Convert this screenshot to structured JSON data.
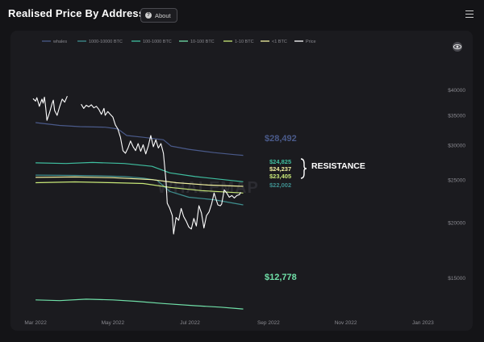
{
  "header": {
    "title": "Realised Price By Address",
    "about_label": "About"
  },
  "watermark": "WHALEMAP",
  "annotation": {
    "resistance": "RESISTANCE"
  },
  "colors": {
    "background": "#141417",
    "panel": "#1b1b1f",
    "price": "#ffffff",
    "whales": "#4a5a8a",
    "btc_1000_10000": "#3f8f8f",
    "btc_100_1000": "#3fbfa0",
    "btc_10_100": "#70e0a8",
    "btc_1_10": "#c8e878",
    "btc_lt1": "#f0f0a0"
  },
  "chart_data": {
    "type": "line",
    "x_ticks": [
      "Mar 2022",
      "May 2022",
      "Jul 2022",
      "Sep 2022",
      "Nov 2022",
      "Jan 2023"
    ],
    "y_ticks": [
      "$40000",
      "$35000",
      "$30000",
      "$25000",
      "$20000",
      "$15000"
    ],
    "y_scale": "log",
    "ylim": [
      12000,
      45000
    ],
    "xlim": [
      "2022-02-20",
      "2023-01-25"
    ],
    "legend_position": "top-left",
    "series": [
      {
        "name": "whales",
        "color": "#4a5a8a",
        "end_label": "$28,492",
        "points": [
          [
            "2022-03-01",
            33800
          ],
          [
            "2022-03-20",
            33300
          ],
          [
            "2022-04-05",
            33100
          ],
          [
            "2022-04-25",
            33000
          ],
          [
            "2022-05-05",
            32700
          ],
          [
            "2022-05-12",
            31600
          ],
          [
            "2022-05-25",
            31300
          ],
          [
            "2022-06-10",
            30900
          ],
          [
            "2022-06-16",
            29900
          ],
          [
            "2022-06-30",
            29400
          ],
          [
            "2022-07-20",
            28900
          ],
          [
            "2022-08-05",
            28600
          ],
          [
            "2022-08-12",
            28492
          ]
        ]
      },
      {
        "name": "1000-10000 BTC",
        "color": "#3f8f8f",
        "end_label": "$22,002",
        "points": [
          [
            "2022-03-01",
            25700
          ],
          [
            "2022-04-01",
            25650
          ],
          [
            "2022-04-20",
            25600
          ],
          [
            "2022-05-10",
            25500
          ],
          [
            "2022-05-25",
            25300
          ],
          [
            "2022-06-05",
            25000
          ],
          [
            "2022-06-15",
            23600
          ],
          [
            "2022-06-30",
            22900
          ],
          [
            "2022-07-20",
            22600
          ],
          [
            "2022-08-12",
            22002
          ]
        ]
      },
      {
        "name": "100-1000 BTC",
        "color": "#3fbfa0",
        "end_label": "$24,825",
        "points": [
          [
            "2022-03-01",
            27400
          ],
          [
            "2022-03-25",
            27300
          ],
          [
            "2022-04-15",
            27450
          ],
          [
            "2022-05-10",
            27300
          ],
          [
            "2022-06-01",
            26900
          ],
          [
            "2022-06-15",
            26000
          ],
          [
            "2022-07-05",
            25500
          ],
          [
            "2022-08-12",
            24825
          ]
        ]
      },
      {
        "name": "10-100 BTC",
        "color": "#70e0a8",
        "end_label": "$12,778",
        "points": [
          [
            "2022-03-01",
            13400
          ],
          [
            "2022-03-20",
            13350
          ],
          [
            "2022-04-10",
            13450
          ],
          [
            "2022-05-01",
            13400
          ],
          [
            "2022-05-20",
            13300
          ],
          [
            "2022-06-10",
            13150
          ],
          [
            "2022-07-05",
            13000
          ],
          [
            "2022-07-25",
            12900
          ],
          [
            "2022-08-12",
            12778
          ]
        ]
      },
      {
        "name": "1-10 BTC",
        "color": "#c8e878",
        "end_label": "$23,405",
        "points": [
          [
            "2022-03-01",
            24700
          ],
          [
            "2022-04-01",
            24800
          ],
          [
            "2022-05-01",
            24700
          ],
          [
            "2022-05-25",
            24600
          ],
          [
            "2022-06-15",
            24100
          ],
          [
            "2022-07-10",
            23700
          ],
          [
            "2022-08-12",
            23405
          ]
        ]
      },
      {
        "name": "<1 BTC",
        "color": "#f0f0a0",
        "end_label": "$24,237",
        "points": [
          [
            "2022-03-01",
            25400
          ],
          [
            "2022-04-01",
            25450
          ],
          [
            "2022-05-01",
            25350
          ],
          [
            "2022-06-01",
            25100
          ],
          [
            "2022-06-20",
            24700
          ],
          [
            "2022-07-15",
            24400
          ],
          [
            "2022-08-12",
            24237
          ]
        ]
      },
      {
        "name": "Price",
        "color": "#ffffff",
        "segments": [
          [
            [
              "2022-02-27",
              38300
            ],
            [
              "2022-03-01",
              37800
            ],
            [
              "2022-03-02",
              38500
            ],
            [
              "2022-03-04",
              36800
            ],
            [
              "2022-03-06",
              38200
            ],
            [
              "2022-03-07",
              37400
            ],
            [
              "2022-03-08",
              38600
            ],
            [
              "2022-03-09",
              36500
            ],
            [
              "2022-03-10",
              34200
            ],
            [
              "2022-03-12",
              35600
            ],
            [
              "2022-03-14",
              37300
            ],
            [
              "2022-03-15",
              38000
            ],
            [
              "2022-03-16",
              36000
            ],
            [
              "2022-03-18",
              35100
            ],
            [
              "2022-03-20",
              36700
            ],
            [
              "2022-03-22",
              38200
            ],
            [
              "2022-03-24",
              37600
            ],
            [
              "2022-03-26",
              38800
            ]
          ],
          [
            [
              "2022-04-06",
              37200
            ],
            [
              "2022-04-08",
              36400
            ],
            [
              "2022-04-10",
              37000
            ],
            [
              "2022-04-12",
              36700
            ],
            [
              "2022-04-14",
              37100
            ],
            [
              "2022-04-16",
              36500
            ],
            [
              "2022-04-18",
              36800
            ],
            [
              "2022-04-20",
              36200
            ],
            [
              "2022-04-22",
              35300
            ],
            [
              "2022-04-24",
              36400
            ],
            [
              "2022-04-25",
              35100
            ],
            [
              "2022-04-27",
              35800
            ],
            [
              "2022-04-29",
              35300
            ],
            [
              "2022-05-01",
              34800
            ],
            [
              "2022-05-03",
              33400
            ],
            [
              "2022-05-05",
              32700
            ],
            [
              "2022-05-07",
              31300
            ],
            [
              "2022-05-09",
              29200
            ],
            [
              "2022-05-11",
              28800
            ],
            [
              "2022-05-13",
              29600
            ],
            [
              "2022-05-15",
              30700
            ],
            [
              "2022-05-17",
              29800
            ],
            [
              "2022-05-19",
              29200
            ],
            [
              "2022-05-21",
              30300
            ],
            [
              "2022-05-23",
              29100
            ],
            [
              "2022-05-25",
              30100
            ],
            [
              "2022-05-27",
              28700
            ],
            [
              "2022-05-29",
              29900
            ],
            [
              "2022-05-31",
              31600
            ],
            [
              "2022-06-02",
              29800
            ],
            [
              "2022-06-04",
              30900
            ],
            [
              "2022-06-06",
              29600
            ],
            [
              "2022-06-08",
              30300
            ],
            [
              "2022-06-10",
              28800
            ],
            [
              "2022-06-12",
              24900
            ],
            [
              "2022-06-13",
              22200
            ],
            [
              "2022-06-15",
              21600
            ],
            [
              "2022-06-17",
              20800
            ],
            [
              "2022-06-18",
              18900
            ],
            [
              "2022-06-20",
              20600
            ],
            [
              "2022-06-22",
              20300
            ],
            [
              "2022-06-24",
              21600
            ],
            [
              "2022-06-26",
              20700
            ],
            [
              "2022-06-28",
              20200
            ],
            [
              "2022-06-30",
              19600
            ],
            [
              "2022-07-02",
              19400
            ],
            [
              "2022-07-04",
              20500
            ],
            [
              "2022-07-06",
              19700
            ],
            [
              "2022-07-08",
              21900
            ],
            [
              "2022-07-10",
              21100
            ],
            [
              "2022-07-12",
              19500
            ],
            [
              "2022-07-14",
              20800
            ],
            [
              "2022-07-16",
              21200
            ],
            [
              "2022-07-18",
              22100
            ],
            [
              "2022-07-20",
              23400
            ],
            [
              "2022-07-21",
              22900
            ],
            [
              "2022-07-23",
              22000
            ],
            [
              "2022-07-25",
              21900
            ],
            [
              "2022-07-26",
              22100
            ],
            [
              "2022-07-28",
              23800
            ],
            [
              "2022-07-30",
              23400
            ],
            [
              "2022-08-01",
              22900
            ],
            [
              "2022-08-03",
              23100
            ],
            [
              "2022-08-05",
              22800
            ],
            [
              "2022-08-07",
              23100
            ],
            [
              "2022-08-09",
              23200
            ],
            [
              "2022-08-10",
              23500
            ]
          ]
        ]
      }
    ]
  }
}
